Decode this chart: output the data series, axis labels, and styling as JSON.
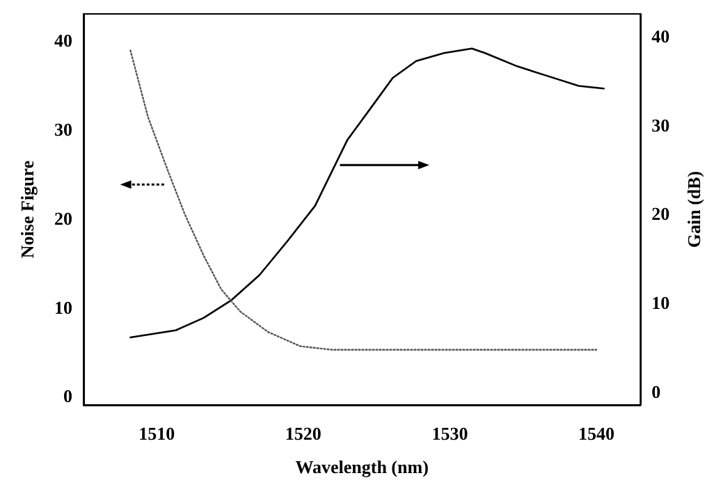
{
  "chart_data": {
    "type": "line",
    "xlabel": "Wavelength (nm)",
    "ylabel": "Noise Figure",
    "y2label": "Gain (dB)",
    "xlim": [
      1505,
      1543
    ],
    "xticks": [
      1510,
      1520,
      1530,
      1540
    ],
    "ylim": [
      -1,
      43
    ],
    "yticks": [
      0,
      10,
      20,
      30,
      40
    ],
    "y2lim": [
      -1.5,
      42.5
    ],
    "y2ticks": [
      0,
      10,
      20,
      30,
      40
    ],
    "marker": "none",
    "series": [
      {
        "color": "#000000",
        "axis": "y2",
        "line_style": "solid",
        "x": [
          1508.2,
          1511.3,
          1513.2,
          1515.1,
          1517.0,
          1518.9,
          1520.8,
          1523.0,
          1524.6,
          1526.1,
          1527.7,
          1529.6,
          1531.5,
          1532.4,
          1534.6,
          1536.5,
          1538.8,
          1540.5
        ],
        "values": [
          6.1,
          6.9,
          8.3,
          10.3,
          13.1,
          16.9,
          20.9,
          28.3,
          31.9,
          35.3,
          37.2,
          38.1,
          38.6,
          38.1,
          36.6,
          35.6,
          34.4,
          34.1
        ]
      },
      {
        "color": "#555555",
        "axis": "y",
        "line_style": "dotted",
        "x": [
          1508.2,
          1509.4,
          1510.7,
          1511.9,
          1513.2,
          1514.4,
          1515.7,
          1517.6,
          1519.8,
          1522.0,
          1527.7,
          1540.0
        ],
        "values": [
          38.9,
          31.4,
          25.6,
          20.5,
          15.8,
          12.0,
          9.5,
          7.2,
          5.6,
          5.2,
          5.2,
          5.2
        ]
      }
    ]
  }
}
